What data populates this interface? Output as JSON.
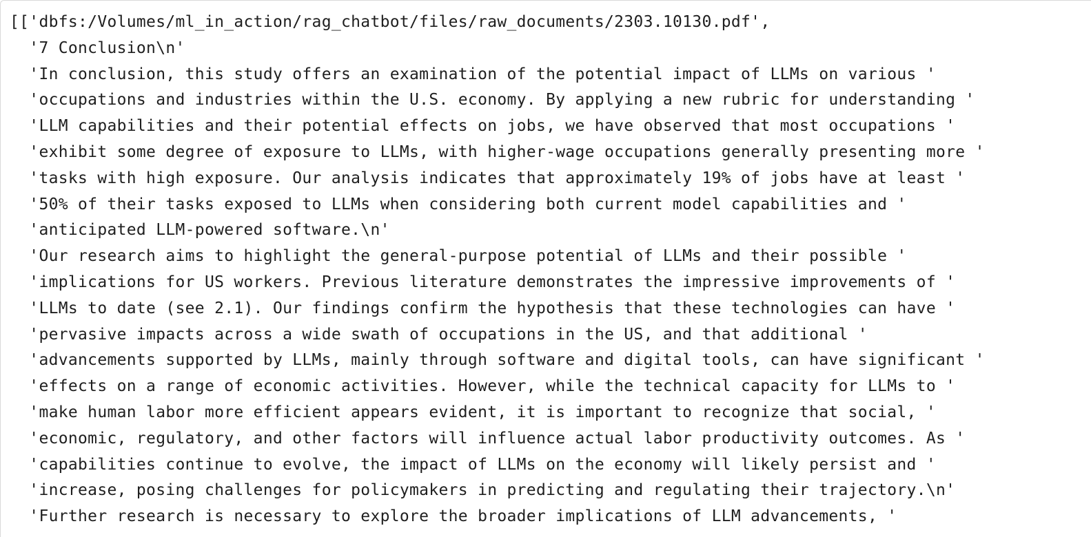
{
  "output": {
    "lines": [
      "[['dbfs:/Volumes/ml_in_action/rag_chatbot/files/raw_documents/2303.10130.pdf',",
      "  '7 Conclusion\\n'",
      "  'In conclusion, this study offers an examination of the potential impact of LLMs on various '",
      "  'occupations and industries within the U.S. economy. By applying a new rubric for understanding '",
      "  'LLM capabilities and their potential effects on jobs, we have observed that most occupations '",
      "  'exhibit some degree of exposure to LLMs, with higher-wage occupations generally presenting more '",
      "  'tasks with high exposure. Our analysis indicates that approximately 19% of jobs have at least '",
      "  '50% of their tasks exposed to LLMs when considering both current model capabilities and '",
      "  'anticipated LLM-powered software.\\n'",
      "  'Our research aims to highlight the general-purpose potential of LLMs and their possible '",
      "  'implications for US workers. Previous literature demonstrates the impressive improvements of '",
      "  'LLMs to date (see 2.1). Our findings confirm the hypothesis that these technologies can have '",
      "  'pervasive impacts across a wide swath of occupations in the US, and that additional '",
      "  'advancements supported by LLMs, mainly through software and digital tools, can have significant '",
      "  'effects on a range of economic activities. However, while the technical capacity for LLMs to '",
      "  'make human labor more efficient appears evident, it is important to recognize that social, '",
      "  'economic, regulatory, and other factors will influence actual labor productivity outcomes. As '",
      "  'capabilities continue to evolve, the impact of LLMs on the economy will likely persist and '",
      "  'increase, posing challenges for policymakers in predicting and regulating their trajectory.\\n'",
      "  'Further research is necessary to explore the broader implications of LLM advancements, '"
    ]
  }
}
